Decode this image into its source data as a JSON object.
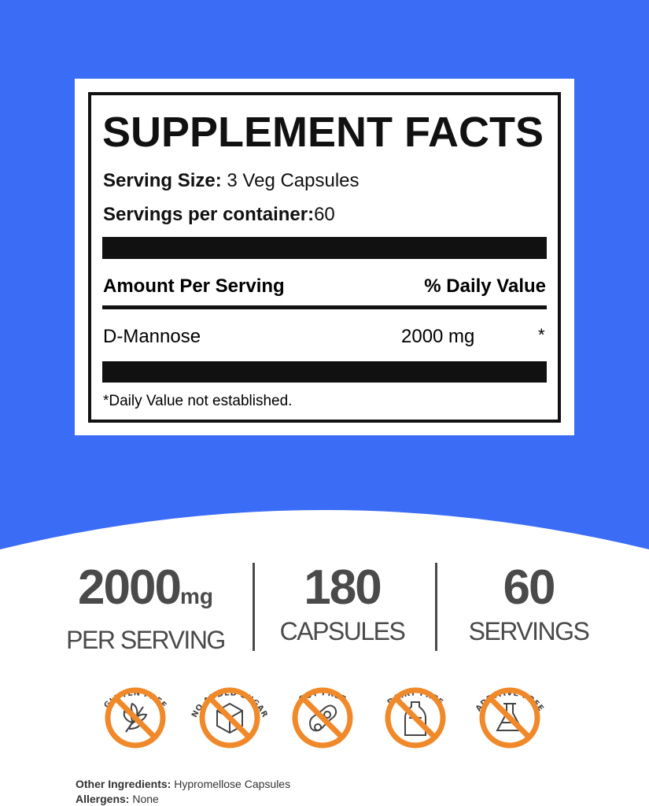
{
  "facts": {
    "title": "SUPPLEMENT FACTS",
    "serving_size_label": "Serving Size:",
    "serving_size_value": "3 Veg Capsules",
    "servings_label": "Servings per container:",
    "servings_value": "60",
    "amount_header": "Amount Per Serving",
    "dv_header": "% Daily Value",
    "ingredient": "D-Mannose",
    "ingredient_amount": "2000 mg",
    "ingredient_dv": "*",
    "footnote": "*Daily Value not established."
  },
  "stats": [
    {
      "value": "2000",
      "unit": "mg",
      "label": "PER SERVING"
    },
    {
      "value": "180",
      "unit": "",
      "label": "CAPSULES"
    },
    {
      "value": "60",
      "unit": "",
      "label": "SERVINGS"
    }
  ],
  "badges": [
    {
      "label": "GLUTEN FREE",
      "icon": "wheat-icon"
    },
    {
      "label": "NO ADDED SUGAR",
      "icon": "sugar-cube-icon"
    },
    {
      "label": "SOY FREE",
      "icon": "soybean-icon"
    },
    {
      "label": "DAIRY FREE",
      "icon": "milk-bottle-icon"
    },
    {
      "label": "ADDITIVE FREE",
      "icon": "flask-icon"
    }
  ],
  "other_ingredients": {
    "label": "Other Ingredients:",
    "value": "Hypromellose Capsules"
  },
  "allergens": {
    "label": "Allergens:",
    "value": "None"
  },
  "colors": {
    "background_blue": "#3b6cf6",
    "badge_orange": "#f0892a",
    "text_gray": "#4a4a4a"
  }
}
